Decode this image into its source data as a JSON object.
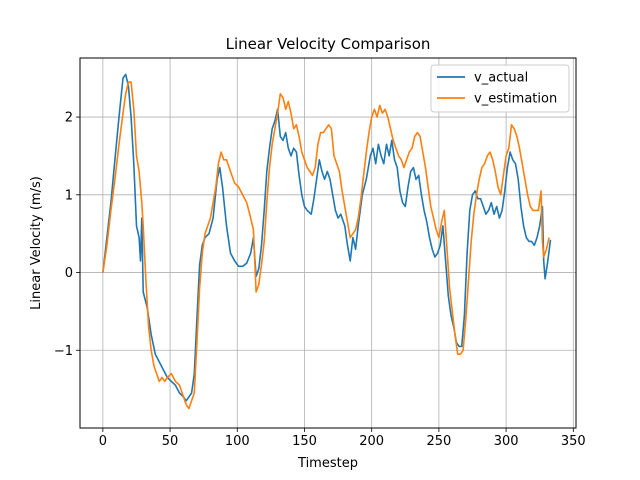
{
  "chart_data": {
    "type": "line",
    "title": "Linear Velocity Comparison",
    "xlabel": "Timestep",
    "ylabel": "Linear Velocity (m/s)",
    "xlim": [
      -17,
      352
    ],
    "ylim": [
      -2.0,
      2.76
    ],
    "xticks": [
      0,
      50,
      100,
      150,
      200,
      250,
      300,
      350
    ],
    "yticks": [
      -1,
      0,
      1,
      2
    ],
    "ytick_labels": [
      "−1",
      "0",
      "1",
      "2"
    ],
    "grid": true,
    "legend_position": "top-right",
    "series": [
      {
        "name": "v_actual",
        "color": "#1f77b4",
        "points": [
          [
            0,
            0.0
          ],
          [
            3,
            0.45
          ],
          [
            6,
            0.9
          ],
          [
            9,
            1.45
          ],
          [
            12,
            2.0
          ],
          [
            15,
            2.5
          ],
          [
            17,
            2.55
          ],
          [
            19,
            2.4
          ],
          [
            21,
            2.0
          ],
          [
            23,
            1.4
          ],
          [
            25,
            0.6
          ],
          [
            27,
            0.45
          ],
          [
            28,
            0.15
          ],
          [
            29,
            0.7
          ],
          [
            30,
            -0.25
          ],
          [
            33,
            -0.45
          ],
          [
            36,
            -0.8
          ],
          [
            39,
            -1.05
          ],
          [
            42,
            -1.15
          ],
          [
            45,
            -1.25
          ],
          [
            48,
            -1.35
          ],
          [
            51,
            -1.4
          ],
          [
            54,
            -1.45
          ],
          [
            57,
            -1.55
          ],
          [
            60,
            -1.6
          ],
          [
            62,
            -1.65
          ],
          [
            64,
            -1.6
          ],
          [
            66,
            -1.55
          ],
          [
            68,
            -1.3
          ],
          [
            70,
            -0.6
          ],
          [
            72,
            0.1
          ],
          [
            74,
            0.35
          ],
          [
            76,
            0.45
          ],
          [
            79,
            0.5
          ],
          [
            82,
            0.7
          ],
          [
            85,
            1.2
          ],
          [
            87,
            1.35
          ],
          [
            89,
            1.1
          ],
          [
            92,
            0.6
          ],
          [
            95,
            0.25
          ],
          [
            98,
            0.15
          ],
          [
            101,
            0.08
          ],
          [
            104,
            0.08
          ],
          [
            107,
            0.12
          ],
          [
            110,
            0.25
          ],
          [
            112,
            0.45
          ],
          [
            114,
            -0.05
          ],
          [
            116,
            0.05
          ],
          [
            118,
            0.35
          ],
          [
            120,
            0.8
          ],
          [
            122,
            1.3
          ],
          [
            124,
            1.6
          ],
          [
            126,
            1.85
          ],
          [
            128,
            1.95
          ],
          [
            130,
            2.1
          ],
          [
            132,
            1.75
          ],
          [
            134,
            1.7
          ],
          [
            136,
            1.8
          ],
          [
            138,
            1.6
          ],
          [
            140,
            1.5
          ],
          [
            142,
            1.6
          ],
          [
            144,
            1.55
          ],
          [
            146,
            1.25
          ],
          [
            148,
            1.0
          ],
          [
            150,
            0.85
          ],
          [
            152,
            0.8
          ],
          [
            155,
            0.75
          ],
          [
            157,
            0.95
          ],
          [
            159,
            1.2
          ],
          [
            161,
            1.45
          ],
          [
            163,
            1.3
          ],
          [
            165,
            1.2
          ],
          [
            167,
            1.3
          ],
          [
            169,
            1.2
          ],
          [
            171,
            1.0
          ],
          [
            173,
            0.8
          ],
          [
            175,
            0.7
          ],
          [
            177,
            0.75
          ],
          [
            180,
            0.6
          ],
          [
            182,
            0.35
          ],
          [
            184,
            0.15
          ],
          [
            186,
            0.45
          ],
          [
            188,
            0.3
          ],
          [
            190,
            0.6
          ],
          [
            193,
            1.0
          ],
          [
            196,
            1.2
          ],
          [
            199,
            1.5
          ],
          [
            201,
            1.6
          ],
          [
            203,
            1.4
          ],
          [
            205,
            1.65
          ],
          [
            207,
            1.5
          ],
          [
            209,
            1.4
          ],
          [
            211,
            1.65
          ],
          [
            213,
            1.5
          ],
          [
            215,
            1.7
          ],
          [
            217,
            1.45
          ],
          [
            219,
            1.35
          ],
          [
            221,
            1.05
          ],
          [
            223,
            0.9
          ],
          [
            225,
            0.85
          ],
          [
            227,
            1.1
          ],
          [
            229,
            1.3
          ],
          [
            231,
            1.35
          ],
          [
            233,
            1.2
          ],
          [
            235,
            1.25
          ],
          [
            237,
            1.0
          ],
          [
            239,
            0.8
          ],
          [
            241,
            0.65
          ],
          [
            243,
            0.45
          ],
          [
            245,
            0.3
          ],
          [
            247,
            0.2
          ],
          [
            249,
            0.25
          ],
          [
            251,
            0.35
          ],
          [
            253,
            0.6
          ],
          [
            255,
            0.15
          ],
          [
            257,
            -0.3
          ],
          [
            259,
            -0.55
          ],
          [
            261,
            -0.7
          ],
          [
            263,
            -0.9
          ],
          [
            265,
            -0.95
          ],
          [
            267,
            -0.95
          ],
          [
            269,
            -0.55
          ],
          [
            271,
            0.25
          ],
          [
            273,
            0.8
          ],
          [
            275,
            1.0
          ],
          [
            277,
            1.05
          ],
          [
            279,
            0.95
          ],
          [
            281,
            0.95
          ],
          [
            283,
            0.85
          ],
          [
            285,
            0.75
          ],
          [
            287,
            0.8
          ],
          [
            289,
            0.9
          ],
          [
            291,
            0.75
          ],
          [
            293,
            0.85
          ],
          [
            295,
            0.7
          ],
          [
            297,
            0.8
          ],
          [
            299,
            1.05
          ],
          [
            301,
            1.35
          ],
          [
            303,
            1.55
          ],
          [
            305,
            1.45
          ],
          [
            307,
            1.4
          ],
          [
            309,
            1.2
          ],
          [
            311,
            0.85
          ],
          [
            313,
            0.6
          ],
          [
            315,
            0.45
          ],
          [
            317,
            0.4
          ],
          [
            319,
            0.4
          ],
          [
            321,
            0.35
          ],
          [
            323,
            0.45
          ],
          [
            325,
            0.6
          ],
          [
            327,
            0.85
          ],
          [
            328,
            0.15
          ],
          [
            329,
            -0.08
          ],
          [
            331,
            0.15
          ],
          [
            333,
            0.42
          ]
        ]
      },
      {
        "name": "v_estimation",
        "color": "#ff7f0e",
        "points": [
          [
            0,
            0.0
          ],
          [
            3,
            0.35
          ],
          [
            6,
            0.8
          ],
          [
            9,
            1.2
          ],
          [
            12,
            1.65
          ],
          [
            15,
            2.05
          ],
          [
            17,
            2.3
          ],
          [
            19,
            2.45
          ],
          [
            21,
            2.45
          ],
          [
            23,
            2.1
          ],
          [
            25,
            1.5
          ],
          [
            27,
            1.3
          ],
          [
            29,
            0.9
          ],
          [
            30,
            0.6
          ],
          [
            32,
            -0.1
          ],
          [
            34,
            -0.7
          ],
          [
            36,
            -1.0
          ],
          [
            38,
            -1.2
          ],
          [
            40,
            -1.3
          ],
          [
            42,
            -1.4
          ],
          [
            44,
            -1.35
          ],
          [
            46,
            -1.4
          ],
          [
            48,
            -1.35
          ],
          [
            51,
            -1.3
          ],
          [
            54,
            -1.4
          ],
          [
            57,
            -1.45
          ],
          [
            60,
            -1.6
          ],
          [
            62,
            -1.7
          ],
          [
            64,
            -1.75
          ],
          [
            66,
            -1.65
          ],
          [
            68,
            -1.55
          ],
          [
            70,
            -0.9
          ],
          [
            72,
            -0.2
          ],
          [
            74,
            0.25
          ],
          [
            76,
            0.5
          ],
          [
            78,
            0.6
          ],
          [
            80,
            0.7
          ],
          [
            82,
            0.9
          ],
          [
            84,
            1.1
          ],
          [
            86,
            1.4
          ],
          [
            88,
            1.55
          ],
          [
            90,
            1.45
          ],
          [
            92,
            1.45
          ],
          [
            95,
            1.3
          ],
          [
            98,
            1.15
          ],
          [
            101,
            1.1
          ],
          [
            104,
            1.0
          ],
          [
            107,
            0.9
          ],
          [
            110,
            0.7
          ],
          [
            112,
            0.55
          ],
          [
            114,
            -0.25
          ],
          [
            116,
            -0.15
          ],
          [
            118,
            0.1
          ],
          [
            120,
            0.4
          ],
          [
            122,
            0.9
          ],
          [
            124,
            1.35
          ],
          [
            126,
            1.65
          ],
          [
            128,
            1.85
          ],
          [
            130,
            2.05
          ],
          [
            132,
            2.3
          ],
          [
            134,
            2.25
          ],
          [
            136,
            2.1
          ],
          [
            138,
            2.2
          ],
          [
            140,
            2.05
          ],
          [
            142,
            1.85
          ],
          [
            144,
            1.9
          ],
          [
            146,
            1.75
          ],
          [
            148,
            1.55
          ],
          [
            150,
            1.45
          ],
          [
            152,
            1.35
          ],
          [
            154,
            1.3
          ],
          [
            156,
            1.25
          ],
          [
            158,
            1.35
          ],
          [
            160,
            1.65
          ],
          [
            162,
            1.8
          ],
          [
            164,
            1.8
          ],
          [
            166,
            1.85
          ],
          [
            168,
            1.9
          ],
          [
            170,
            1.85
          ],
          [
            172,
            1.5
          ],
          [
            174,
            1.4
          ],
          [
            176,
            1.3
          ],
          [
            178,
            1.05
          ],
          [
            180,
            0.85
          ],
          [
            182,
            0.65
          ],
          [
            184,
            0.45
          ],
          [
            186,
            0.5
          ],
          [
            188,
            0.55
          ],
          [
            190,
            0.7
          ],
          [
            192,
            0.95
          ],
          [
            194,
            1.25
          ],
          [
            196,
            1.55
          ],
          [
            198,
            1.8
          ],
          [
            200,
            2.0
          ],
          [
            202,
            2.1
          ],
          [
            204,
            2.0
          ],
          [
            206,
            2.15
          ],
          [
            208,
            2.05
          ],
          [
            210,
            2.1
          ],
          [
            212,
            2.0
          ],
          [
            214,
            1.85
          ],
          [
            216,
            1.7
          ],
          [
            218,
            1.6
          ],
          [
            220,
            1.5
          ],
          [
            222,
            1.45
          ],
          [
            224,
            1.35
          ],
          [
            226,
            1.45
          ],
          [
            228,
            1.55
          ],
          [
            230,
            1.6
          ],
          [
            232,
            1.75
          ],
          [
            234,
            1.8
          ],
          [
            236,
            1.75
          ],
          [
            238,
            1.55
          ],
          [
            240,
            1.35
          ],
          [
            242,
            1.1
          ],
          [
            244,
            0.85
          ],
          [
            246,
            0.7
          ],
          [
            248,
            0.55
          ],
          [
            250,
            0.45
          ],
          [
            252,
            0.65
          ],
          [
            254,
            0.8
          ],
          [
            256,
            0.3
          ],
          [
            258,
            -0.2
          ],
          [
            260,
            -0.5
          ],
          [
            262,
            -0.8
          ],
          [
            264,
            -1.05
          ],
          [
            266,
            -1.05
          ],
          [
            268,
            -1.0
          ],
          [
            270,
            -0.6
          ],
          [
            272,
            -0.1
          ],
          [
            274,
            0.4
          ],
          [
            276,
            0.75
          ],
          [
            278,
            1.0
          ],
          [
            280,
            1.2
          ],
          [
            282,
            1.35
          ],
          [
            284,
            1.4
          ],
          [
            286,
            1.5
          ],
          [
            288,
            1.55
          ],
          [
            290,
            1.45
          ],
          [
            292,
            1.3
          ],
          [
            294,
            1.1
          ],
          [
            296,
            1.0
          ],
          [
            298,
            1.25
          ],
          [
            300,
            1.5
          ],
          [
            302,
            1.6
          ],
          [
            304,
            1.9
          ],
          [
            306,
            1.85
          ],
          [
            308,
            1.75
          ],
          [
            310,
            1.6
          ],
          [
            312,
            1.4
          ],
          [
            314,
            1.2
          ],
          [
            316,
            1.0
          ],
          [
            318,
            0.85
          ],
          [
            320,
            0.8
          ],
          [
            322,
            0.8
          ],
          [
            324,
            0.8
          ],
          [
            326,
            1.05
          ],
          [
            327,
            0.4
          ],
          [
            328,
            0.2
          ],
          [
            330,
            0.3
          ],
          [
            332,
            0.45
          ]
        ]
      }
    ]
  }
}
